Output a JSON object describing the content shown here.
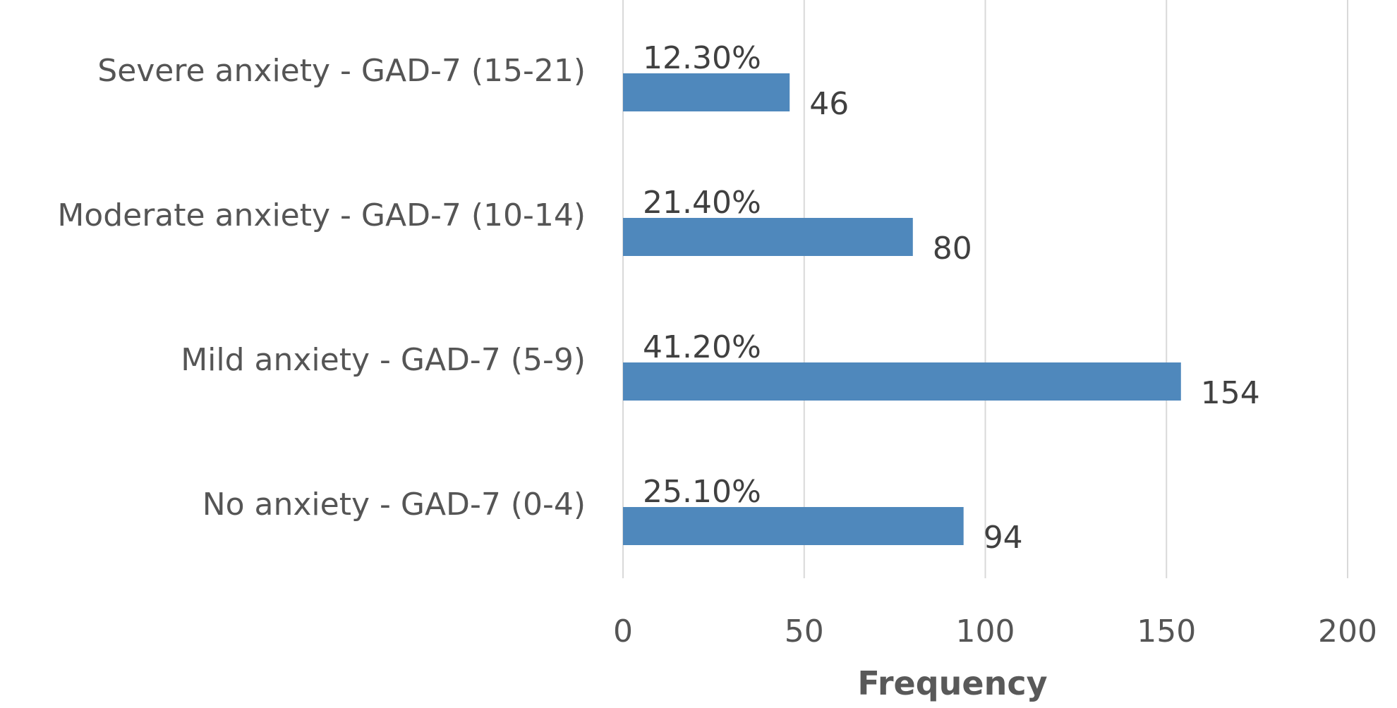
{
  "chart_data": {
    "type": "bar",
    "orientation": "horizontal",
    "categories": [
      "No anxiety - GAD-7 (0-4)",
      "Mild anxiety - GAD-7 (5-9)",
      "Moderate anxiety - GAD-7 (10-14)",
      "Severe anxiety - GAD-7 (15-21)"
    ],
    "values": [
      94,
      154,
      80,
      46
    ],
    "percent_labels": [
      "25.10%",
      "41.20%",
      "21.40%",
      "12.30%"
    ],
    "xlabel": "Frequency",
    "ylabel": "",
    "xlim": [
      0,
      200
    ],
    "ticks": [
      0,
      50,
      100,
      150,
      200
    ],
    "grid": true,
    "bar_color": "#4f88bc"
  }
}
